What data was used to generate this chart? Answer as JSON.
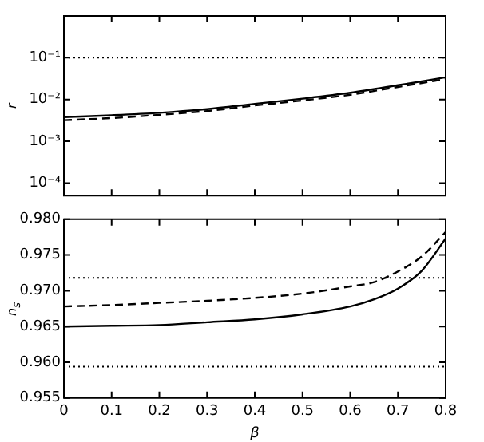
{
  "chart_data": [
    {
      "type": "line",
      "ylabel": "r",
      "log": "y",
      "tick_labels": "y",
      "grid": false,
      "legend": false,
      "marker": "none",
      "x": [
        0,
        0.1,
        0.2,
        0.3,
        0.4,
        0.5,
        0.6,
        0.7,
        0.8
      ],
      "series": [
        {
          "color": "#000000",
          "line_style": "solid",
          "values": [
            0.0038,
            0.0042,
            0.0048,
            0.0059,
            0.0079,
            0.0105,
            0.0145,
            0.022,
            0.034
          ]
        },
        {
          "color": "#000000",
          "line_style": "dashed",
          "values": [
            0.0032,
            0.0036,
            0.0043,
            0.0053,
            0.0072,
            0.0095,
            0.013,
            0.02,
            0.031
          ]
        }
      ],
      "xlim": [
        0,
        0.8
      ],
      "xticks": [
        0,
        0.1,
        0.2,
        0.3,
        0.4,
        0.5,
        0.6,
        0.7,
        0.8
      ],
      "ylim": [
        5e-05,
        1
      ],
      "yticks": [
        {
          "value": 0.0001,
          "label": "10⁻⁴"
        },
        {
          "value": 0.001,
          "label": "10⁻³"
        },
        {
          "value": 0.01,
          "label": "10⁻²"
        },
        {
          "value": 0.1,
          "label": "10⁻¹"
        }
      ],
      "ref_lines": [
        {
          "axis": "y",
          "value": 0.1,
          "line_style": "dotted"
        }
      ]
    },
    {
      "type": "line",
      "xlabel": "β",
      "ylabel": "n$_{s}$",
      "grid": false,
      "legend": false,
      "marker": "none",
      "x": [
        0,
        0.1,
        0.2,
        0.3,
        0.4,
        0.5,
        0.6,
        0.65,
        0.7,
        0.75,
        0.8
      ],
      "series": [
        {
          "color": "#000000",
          "line_style": "solid",
          "values": [
            0.965,
            0.9651,
            0.9652,
            0.9656,
            0.966,
            0.9667,
            0.9678,
            0.9688,
            0.9703,
            0.9728,
            0.9773
          ]
        },
        {
          "color": "#000000",
          "line_style": "dashed",
          "values": [
            0.9678,
            0.968,
            0.9683,
            0.9686,
            0.969,
            0.9696,
            0.9706,
            0.9712,
            0.9727,
            0.9748,
            0.9782
          ]
        }
      ],
      "xlim": [
        0,
        0.8
      ],
      "xticks": [
        0,
        0.1,
        0.2,
        0.3,
        0.4,
        0.5,
        0.6,
        0.7,
        0.8
      ],
      "ylim": [
        0.955,
        0.98
      ],
      "yticks": [
        {
          "value": 0.955,
          "label": "0.955"
        },
        {
          "value": 0.96,
          "label": "0.960"
        },
        {
          "value": 0.965,
          "label": "0.965"
        },
        {
          "value": 0.97,
          "label": "0.970"
        },
        {
          "value": 0.975,
          "label": "0.975"
        },
        {
          "value": 0.98,
          "label": "0.980"
        }
      ],
      "ref_lines": [
        {
          "axis": "y",
          "value": 0.9718,
          "line_style": "dotted"
        },
        {
          "axis": "y",
          "value": 0.9594,
          "line_style": "dotted"
        }
      ]
    }
  ]
}
